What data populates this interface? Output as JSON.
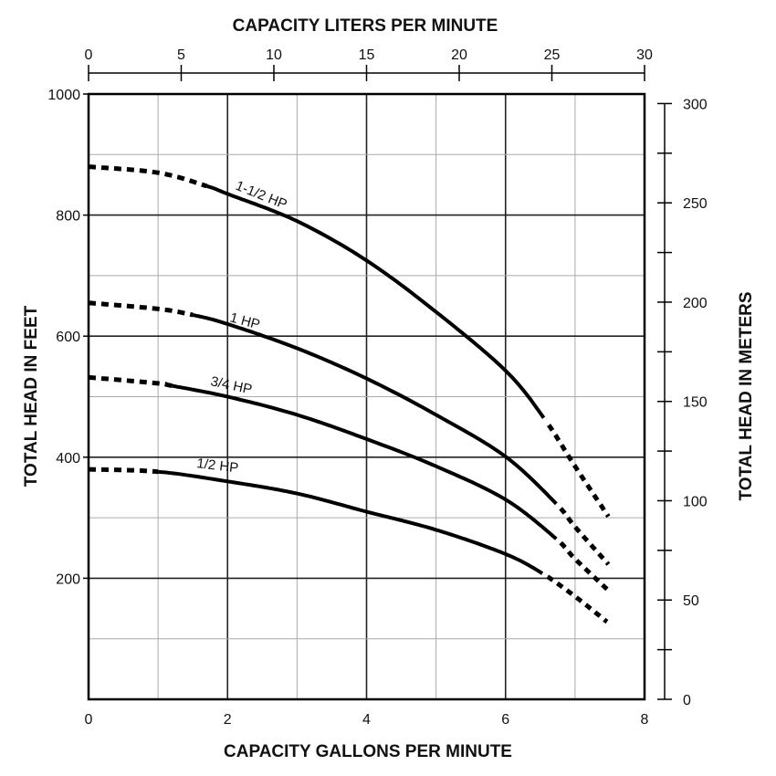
{
  "chart_data": {
    "type": "line",
    "xlabel": "CAPACITY GALLONS PER MINUTE",
    "x2label": "CAPACITY LITERS PER MINUTE",
    "ylabel": "TOTAL HEAD IN FEET",
    "y2label": "TOTAL HEAD IN METERS",
    "xlim": [
      0,
      8
    ],
    "ylim": [
      0,
      1000
    ],
    "x2lim": [
      0,
      30
    ],
    "y2lim": [
      0,
      300
    ],
    "xticks": [
      "0",
      "2",
      "4",
      "6",
      "8"
    ],
    "yticks": [
      "200",
      "400",
      "600",
      "800",
      "1000"
    ],
    "x2ticks": [
      "0",
      "5",
      "10",
      "15",
      "20",
      "25",
      "30"
    ],
    "y2ticks": [
      "0",
      "50",
      "100",
      "150",
      "200",
      "250",
      "300"
    ],
    "grid": true,
    "series": [
      {
        "name": "1-1/2 HP",
        "x": [
          0,
          1,
          1.7,
          2,
          3,
          4,
          5,
          6,
          6.55,
          7,
          7.48
        ],
        "y": [
          880,
          870,
          848,
          835,
          790,
          725,
          640,
          543,
          465,
          385,
          302
        ],
        "solid_range": [
          1.7,
          6.55
        ]
      },
      {
        "name": "1 HP",
        "x": [
          0,
          1,
          1.5,
          2,
          3,
          4,
          5,
          6,
          6.73,
          7,
          7.48
        ],
        "y": [
          655,
          645,
          635,
          620,
          580,
          530,
          470,
          401,
          323,
          285,
          223
        ],
        "solid_range": [
          1.5,
          6.73
        ]
      },
      {
        "name": "3/4 HP",
        "x": [
          0,
          1,
          1.2,
          2,
          3,
          4,
          5,
          6,
          6.73,
          7,
          7.46
        ],
        "y": [
          532,
          522,
          518,
          500,
          470,
          430,
          385,
          330,
          265,
          232,
          182
        ],
        "solid_range": [
          1.2,
          6.73
        ]
      },
      {
        "name": "1/2 HP",
        "x": [
          0,
          1,
          2,
          3,
          4,
          5,
          6,
          6.53,
          7,
          7.46
        ],
        "y": [
          380,
          376,
          360,
          340,
          310,
          280,
          240,
          208,
          170,
          128
        ],
        "solid_range": [
          1.0,
          6.53
        ]
      }
    ]
  }
}
